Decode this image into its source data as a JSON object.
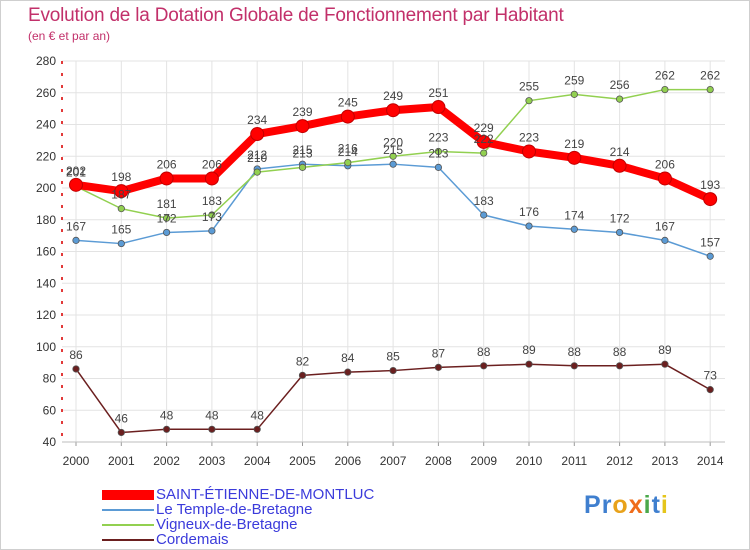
{
  "title": "Evolution de la Dotation Globale de Fonctionnement par Habitant",
  "subtitle": "(en € et par an)",
  "brand": {
    "letters": [
      "P",
      "r",
      "o",
      "x",
      "i",
      "t",
      "i"
    ],
    "colors": [
      "#3f7fcf",
      "#3f7fcf",
      "#e8a21b",
      "#ef6c1b",
      "#4aa84a",
      "#3f7fcf",
      "#e5c51b"
    ]
  },
  "chart_data": {
    "type": "line",
    "title": "Evolution de la Dotation Globale de Fonctionnement par Habitant",
    "subtitle": "(en € et par an)",
    "xlabel": "",
    "ylabel": "",
    "ylim": [
      40,
      280
    ],
    "yticks": [
      40,
      60,
      80,
      100,
      120,
      140,
      160,
      180,
      200,
      220,
      240,
      260,
      280
    ],
    "grid": true,
    "x": [
      "2000",
      "2001",
      "2002",
      "2003",
      "2004",
      "2005",
      "2006",
      "2007",
      "2008",
      "2009",
      "2010",
      "2011",
      "2012",
      "2013",
      "2014"
    ],
    "series": [
      {
        "name": "SAINT-ÉTIENNE-DE-MONTLUC",
        "color": "#ff0000",
        "values": [
          202,
          198,
          206,
          206,
          234,
          239,
          245,
          249,
          251,
          229,
          223,
          219,
          214,
          206,
          193
        ]
      },
      {
        "name": "Le Temple-de-Bretagne",
        "color": "#5b9bd5",
        "values": [
          167,
          165,
          172,
          173,
          212,
          215,
          214,
          215,
          213,
          183,
          176,
          174,
          172,
          167,
          157
        ]
      },
      {
        "name": "Vigneux-de-Bretagne",
        "color": "#92d050",
        "values": [
          201,
          187,
          181,
          183,
          210,
          213,
          216,
          220,
          223,
          222,
          255,
          259,
          256,
          262,
          262
        ]
      },
      {
        "name": "Cordemais",
        "color": "#6b1f1f",
        "values": [
          86,
          46,
          48,
          48,
          48,
          82,
          84,
          85,
          87,
          88,
          89,
          88,
          88,
          89,
          73
        ]
      }
    ]
  }
}
